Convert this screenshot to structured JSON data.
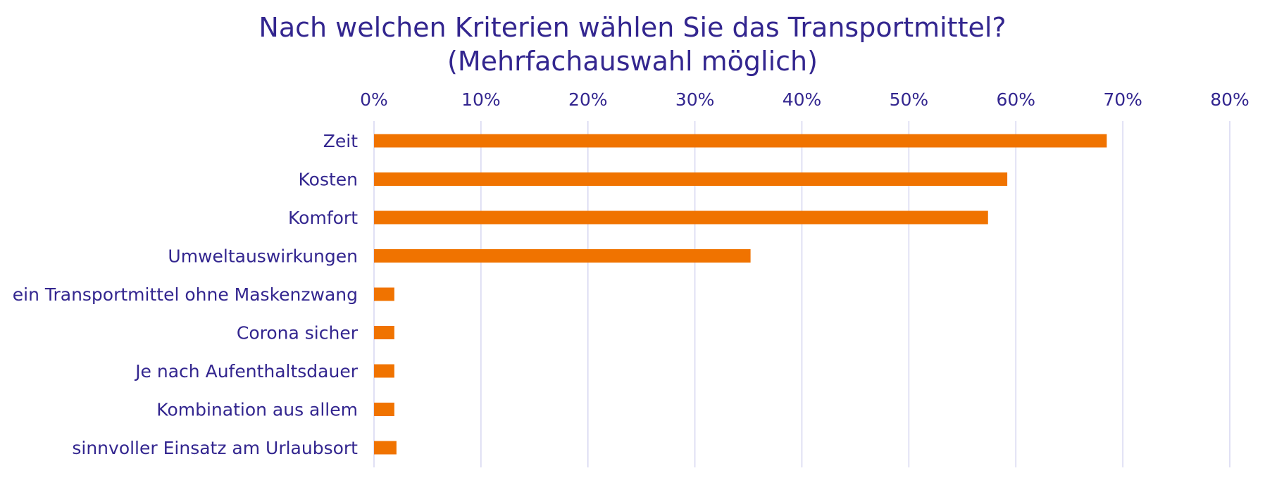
{
  "chart_data": {
    "type": "bar",
    "orientation": "horizontal",
    "title": "Nach welchen Kriterien wählen Sie das Transportmittel?",
    "subtitle": "(Mehrfachauswahl möglich)",
    "categories": [
      "Zeit",
      "Kosten",
      "Komfort",
      "Umweltauswirkungen",
      "ein Transportmittel ohne Maskenzwang",
      "Corona sicher",
      "Je nach Aufenthaltsdauer",
      "Kombination aus allem",
      "sinnvoller Einsatz am Urlaubsort"
    ],
    "values": [
      68.5,
      59.2,
      57.4,
      35.2,
      1.9,
      1.9,
      1.9,
      1.9,
      2.1
    ],
    "value_unit": "%",
    "xlim": [
      0,
      80
    ],
    "x_ticks": [
      "0%",
      "10%",
      "20%",
      "30%",
      "40%",
      "50%",
      "60%",
      "70%",
      "80%"
    ],
    "x_axis_position": "top",
    "grid": "vertical",
    "legend": "none",
    "colors": {
      "bar": "#F07300",
      "text": "#33268F",
      "grid": "#D6D6F0"
    }
  }
}
